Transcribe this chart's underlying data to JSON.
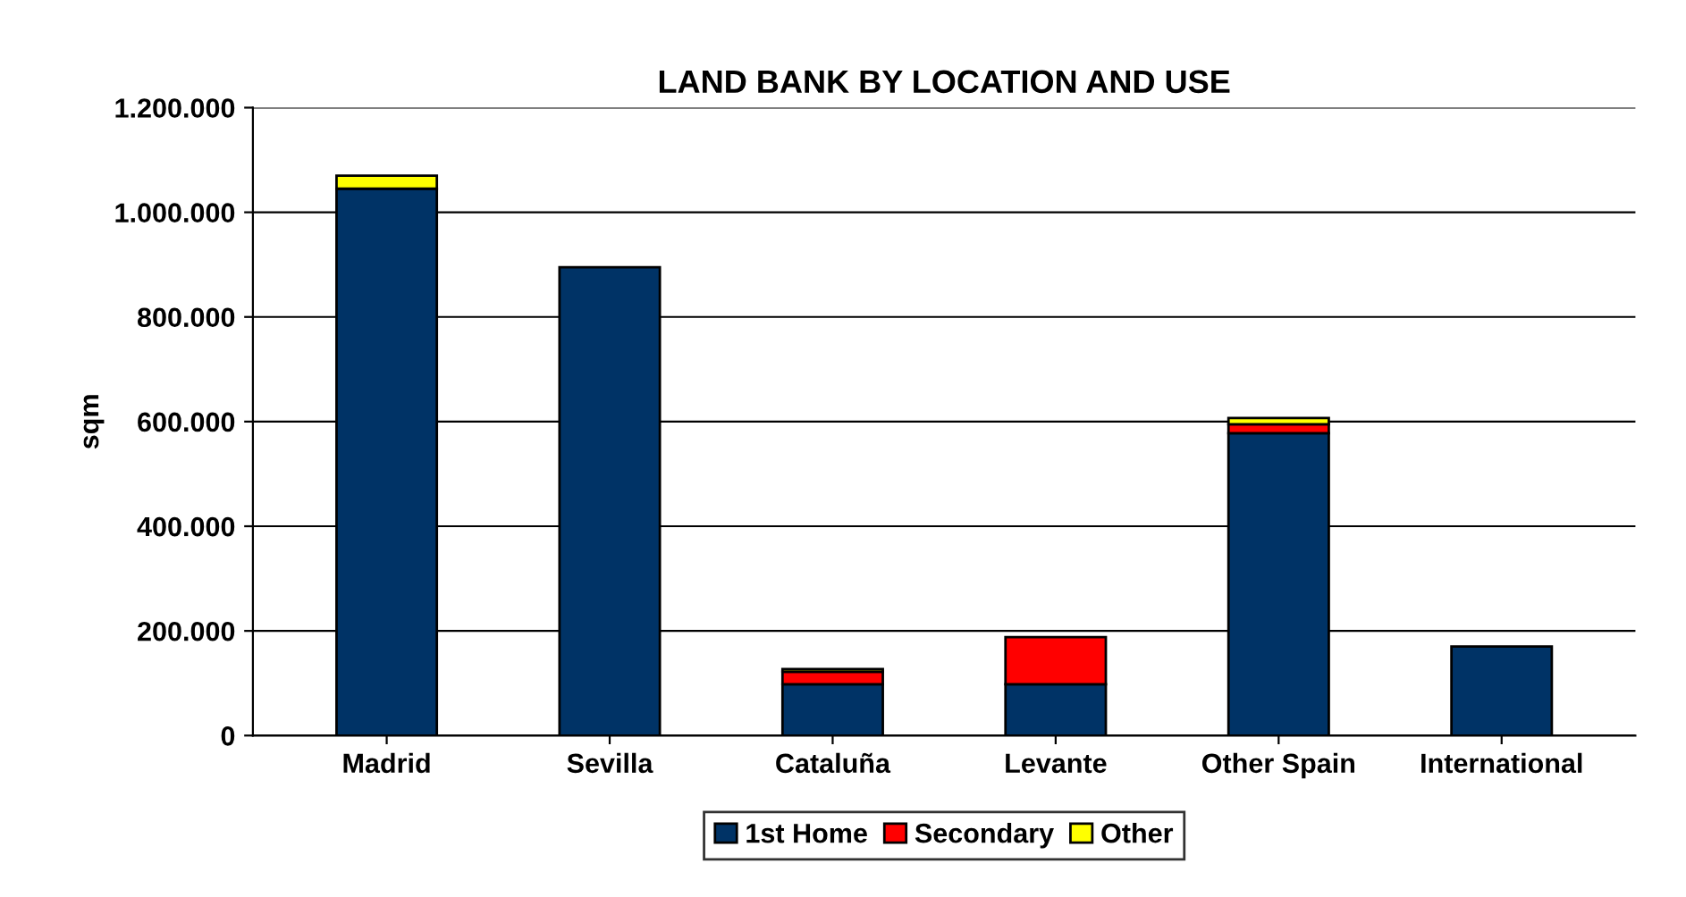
{
  "chart_data": {
    "type": "bar",
    "title": "LAND BANK BY LOCATION AND USE",
    "ylabel": "sqm",
    "categories": [
      "Madrid",
      "Sevilla",
      "Cataluña",
      "Levante",
      "Other Spain",
      "International"
    ],
    "stacked": true,
    "series": [
      {
        "name": "1st Home",
        "color": "#003366",
        "values": [
          1045000,
          895000,
          98000,
          98000,
          578000,
          170000
        ]
      },
      {
        "name": "Secondary",
        "color": "#ff0000",
        "values": [
          null,
          null,
          24000,
          90000,
          17000,
          null
        ]
      },
      {
        "name": "Other",
        "color": "#ffff00",
        "values": [
          25000,
          null,
          5000,
          null,
          12000,
          null
        ]
      }
    ],
    "ylim": [
      0,
      1200000
    ],
    "yticks": [
      {
        "value": 0,
        "label": "0"
      },
      {
        "value": 200000,
        "label": "200.000"
      },
      {
        "value": 400000,
        "label": "400.000"
      },
      {
        "value": 600000,
        "label": "600.000"
      },
      {
        "value": 800000,
        "label": "800.000"
      },
      {
        "value": 1000000,
        "label": "1.000.000"
      },
      {
        "value": 1200000,
        "label": "1.200.000"
      }
    ],
    "grid": "y",
    "legend": "bottom"
  }
}
